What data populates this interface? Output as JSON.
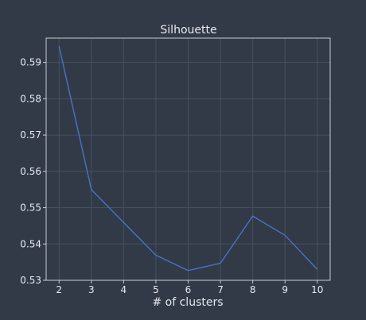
{
  "chart_data": {
    "type": "line",
    "title": "Silhouette",
    "xlabel": "# of clusters",
    "ylabel": "",
    "x": [
      2,
      3,
      4,
      5,
      6,
      7,
      8,
      9,
      10
    ],
    "series": [
      {
        "values": [
          0.5945,
          0.555,
          0.5459,
          0.5369,
          0.5327,
          0.5347,
          0.5477,
          0.5424,
          0.533
        ]
      }
    ],
    "x_ticks": [
      "2",
      "3",
      "4",
      "5",
      "6",
      "7",
      "8",
      "9",
      "10"
    ],
    "y_ticks": [
      "0.53",
      "0.54",
      "0.55",
      "0.56",
      "0.57",
      "0.58",
      "0.59"
    ],
    "xlim": [
      1.6,
      10.4
    ],
    "ylim": [
      0.53,
      0.5967
    ],
    "grid": true,
    "colors": {
      "background": "#323a48",
      "line": "#4a72c4",
      "grid": "#46505f",
      "frame": "#c8ccd4",
      "text": "#e6e9ee"
    }
  }
}
